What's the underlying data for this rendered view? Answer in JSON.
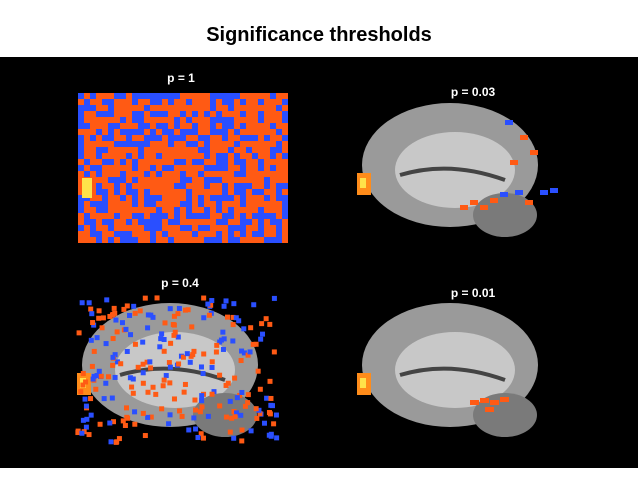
{
  "title": "Significance thresholds",
  "panels": [
    {
      "label": "p = 1"
    },
    {
      "label": "p = 0.03"
    },
    {
      "label": "p = 0.4"
    },
    {
      "label": "p = 0.01"
    }
  ]
}
